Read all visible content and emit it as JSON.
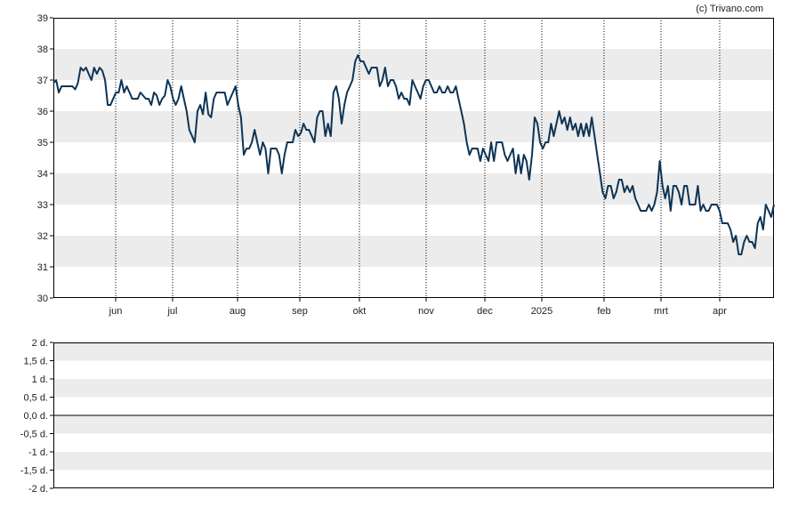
{
  "credit": "(c) Trivano.com",
  "colors": {
    "line": "#0d3455",
    "band": "#ececec",
    "grid": "#000000",
    "frame": "#000000",
    "zero_line": "#000000"
  },
  "chart_data": [
    {
      "type": "line",
      "x_tick_labels": [
        "jun",
        "jul",
        "aug",
        "sep",
        "okt",
        "nov",
        "dec",
        "2025",
        "feb",
        "mrt",
        "apr"
      ],
      "ylim": [
        30,
        39
      ],
      "y_ticks": [
        30,
        31,
        32,
        33,
        34,
        35,
        36,
        37,
        38,
        39
      ],
      "y_tick_labels": [
        "30",
        "31",
        "32",
        "33",
        "34",
        "35",
        "36",
        "37",
        "38",
        "39"
      ],
      "grid": "vertical dotted at month boundaries, alternating horizontal bands",
      "series": [
        {
          "values": [
            36.9,
            37.0,
            36.6,
            36.8,
            36.8,
            36.8,
            36.8,
            36.8,
            36.7,
            36.9,
            37.4,
            37.3,
            37.4,
            37.2,
            37.0,
            37.4,
            37.2,
            37.4,
            37.3,
            37.0,
            36.2,
            36.2,
            36.4,
            36.6,
            36.6,
            37.0,
            36.6,
            36.8,
            36.6,
            36.4,
            36.4,
            36.4,
            36.6,
            36.5,
            36.4,
            36.4,
            36.2,
            36.6,
            36.5,
            36.2,
            36.4,
            36.5,
            37.0,
            36.8,
            36.4,
            36.2,
            36.4,
            36.8,
            36.4,
            36.0,
            35.4,
            35.2,
            35.0,
            36.0,
            36.2,
            35.9,
            36.6,
            35.9,
            35.8,
            36.4,
            36.6,
            36.6,
            36.6,
            36.6,
            36.2,
            36.4,
            36.6,
            36.8,
            36.2,
            35.8,
            34.6,
            34.8,
            34.8,
            35.0,
            35.4,
            35.0,
            34.6,
            35.0,
            34.8,
            34.0,
            34.8,
            34.8,
            34.8,
            34.6,
            34.0,
            34.6,
            35.0,
            35.0,
            35.0,
            35.4,
            35.2,
            35.3,
            35.6,
            35.4,
            35.4,
            35.2,
            35.0,
            35.8,
            36.0,
            36.0,
            35.2,
            35.6,
            35.2,
            36.6,
            36.8,
            36.4,
            35.6,
            36.2,
            36.6,
            36.8,
            37.0,
            37.6,
            37.8,
            37.6,
            37.6,
            37.4,
            37.2,
            37.4,
            37.4,
            37.4,
            36.8,
            37.0,
            37.4,
            36.8,
            37.0,
            37.0,
            36.8,
            36.4,
            36.6,
            36.4,
            36.4,
            36.2,
            37.0,
            36.8,
            36.6,
            36.4,
            36.8,
            37.0,
            37.0,
            36.8,
            36.6,
            36.6,
            36.8,
            36.6,
            36.6,
            36.8,
            36.6,
            36.6,
            36.8,
            36.4,
            36.0,
            35.6,
            35.0,
            34.6,
            34.8,
            34.8,
            34.8,
            34.4,
            34.8,
            34.6,
            34.4,
            35.0,
            34.4,
            35.0,
            35.0,
            35.0,
            34.6,
            34.4,
            34.6,
            34.8,
            34.0,
            34.6,
            34.0,
            34.6,
            34.4,
            33.8,
            34.6,
            35.8,
            35.6,
            35.0,
            34.8,
            35.0,
            35.0,
            35.6,
            35.2,
            35.6,
            36.0,
            35.6,
            35.8,
            35.4,
            35.8,
            35.4,
            35.6,
            35.2,
            35.6,
            35.2,
            35.6,
            35.2,
            35.8,
            35.2,
            34.6,
            34.0,
            33.4,
            33.2,
            33.6,
            33.6,
            33.2,
            33.4,
            33.8,
            33.8,
            33.4,
            33.6,
            33.4,
            33.6,
            33.2,
            33.0,
            32.8,
            32.8,
            32.8,
            33.0,
            32.8,
            33.0,
            33.4,
            34.4,
            33.6,
            33.2,
            33.6,
            32.8,
            33.6,
            33.6,
            33.4,
            33.0,
            33.6,
            33.6,
            33.0,
            33.0,
            33.0,
            33.6,
            32.8,
            33.0,
            32.8,
            32.8,
            33.0,
            33.0,
            33.0,
            32.8,
            32.4,
            32.4,
            32.4,
            32.2,
            31.8,
            32.0,
            31.4,
            31.4,
            31.8,
            32.0,
            31.8,
            31.8,
            31.6,
            32.4,
            32.6,
            32.2,
            33.0,
            32.8,
            32.6,
            33.0
          ],
          "ylim": [
            30,
            39
          ],
          "x_tick_positions": [
            27,
            40,
            55,
            68,
            82,
            98,
            111,
            126,
            142,
            155,
            168
          ]
        }
      ]
    },
    {
      "type": "line",
      "ylim": [
        -2,
        2
      ],
      "y_ticks": [
        -2,
        -1.5,
        -1,
        -0.5,
        0,
        0.5,
        1,
        1.5,
        2
      ],
      "y_tick_labels": [
        "-2 d.",
        "-1,5 d.",
        "-1 d.",
        "-0,5 d.",
        "0,0 d.",
        "0,5 d.",
        "1 d.",
        "1,5 d.",
        "2 d."
      ],
      "grid": "alternating horizontal bands, solid zero line",
      "series": []
    }
  ]
}
